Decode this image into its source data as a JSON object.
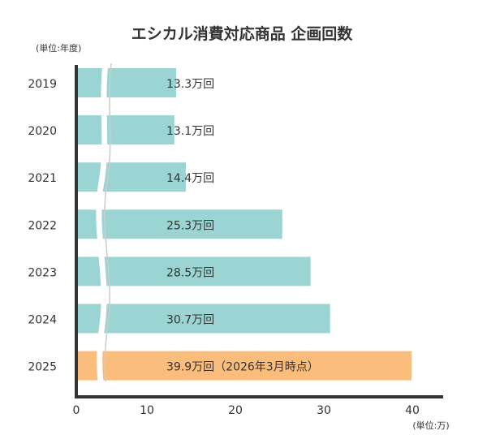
{
  "chart_data": {
    "type": "bar",
    "orientation": "horizontal",
    "title": "エシカル消費対応商品 企画回数",
    "ylabel": "(単位:年度)",
    "xlabel": "(単位:万)",
    "categories": [
      "2019",
      "2020",
      "2021",
      "2022",
      "2023",
      "2024",
      "2025"
    ],
    "values": [
      13.3,
      13.1,
      14.4,
      25.3,
      28.5,
      30.7,
      39.9
    ],
    "data_labels": [
      "13.3万回",
      "13.1万回",
      "14.4万回",
      "25.3万回",
      "28.5万回",
      "30.7万回",
      "39.9万回（2026年3月時点）"
    ],
    "xticks": [
      0,
      10,
      20,
      30,
      40
    ],
    "xlim": [
      0,
      40
    ],
    "axis_break": true,
    "grid": false,
    "colors": {
      "default": "#9ad5d3",
      "highlight": "#fbbd7c",
      "axis": "#333333"
    },
    "highlight_index": 6
  }
}
